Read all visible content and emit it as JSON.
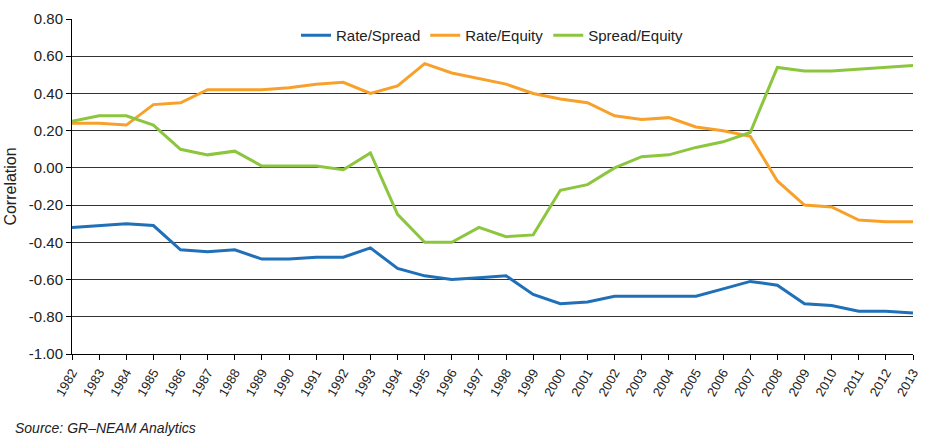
{
  "chart_data": {
    "type": "line",
    "y_label": "Correlation",
    "source": "Source: GR–NEAM Analytics",
    "categories": [
      "1982",
      "1983",
      "1984",
      "1985",
      "1986",
      "1987",
      "1988",
      "1989",
      "1990",
      "1991",
      "1992",
      "1993",
      "1994",
      "1995",
      "1996",
      "1997",
      "1998",
      "1999",
      "2000",
      "2001",
      "2002",
      "2003",
      "2004",
      "2005",
      "2006",
      "2007",
      "2008",
      "2009",
      "2010",
      "2011",
      "2012",
      "2013"
    ],
    "series": [
      {
        "name": "Rate/Spread",
        "color": "#1f70b8",
        "values": [
          -0.32,
          -0.31,
          -0.3,
          -0.31,
          -0.44,
          -0.45,
          -0.44,
          -0.49,
          -0.49,
          -0.48,
          -0.48,
          -0.43,
          -0.54,
          -0.58,
          -0.6,
          -0.59,
          -0.58,
          -0.68,
          -0.73,
          -0.72,
          -0.69,
          -0.69,
          -0.69,
          -0.69,
          -0.65,
          -0.61,
          -0.63,
          -0.73,
          -0.74,
          -0.77,
          -0.77,
          -0.78
        ]
      },
      {
        "name": "Rate/Equity",
        "color": "#f7a12a",
        "values": [
          0.24,
          0.24,
          0.23,
          0.34,
          0.35,
          0.42,
          0.42,
          0.42,
          0.43,
          0.45,
          0.46,
          0.4,
          0.44,
          0.56,
          0.51,
          0.48,
          0.45,
          0.4,
          0.37,
          0.35,
          0.28,
          0.26,
          0.27,
          0.22,
          0.2,
          0.17,
          -0.07,
          -0.2,
          -0.21,
          -0.28,
          -0.29,
          -0.29
        ]
      },
      {
        "name": "Spread/Equity",
        "color": "#8cc63e",
        "values": [
          0.25,
          0.28,
          0.28,
          0.23,
          0.1,
          0.07,
          0.09,
          0.01,
          0.01,
          0.01,
          -0.01,
          0.08,
          -0.25,
          -0.4,
          -0.4,
          -0.32,
          -0.37,
          -0.36,
          -0.12,
          -0.09,
          0.0,
          0.06,
          0.07,
          0.11,
          0.14,
          0.19,
          0.54,
          0.52,
          0.52,
          0.53,
          0.54,
          0.55
        ]
      }
    ],
    "ylim": [
      -1.0,
      0.8
    ],
    "yticks": [
      {
        "value": -1.0,
        "label": "-1.00"
      },
      {
        "value": -0.8,
        "label": "-0.80"
      },
      {
        "value": -0.6,
        "label": "-0.60"
      },
      {
        "value": -0.4,
        "label": "-0.40"
      },
      {
        "value": -0.2,
        "label": "-0.20"
      },
      {
        "value": 0,
        "label": "0.00"
      },
      {
        "value": 0.2,
        "label": "0.20"
      },
      {
        "value": 0.4,
        "label": "0.40"
      },
      {
        "value": 0.6,
        "label": "0.60"
      },
      {
        "value": 0.8,
        "label": "0.80"
      }
    ],
    "grid": true,
    "legend": "top"
  }
}
